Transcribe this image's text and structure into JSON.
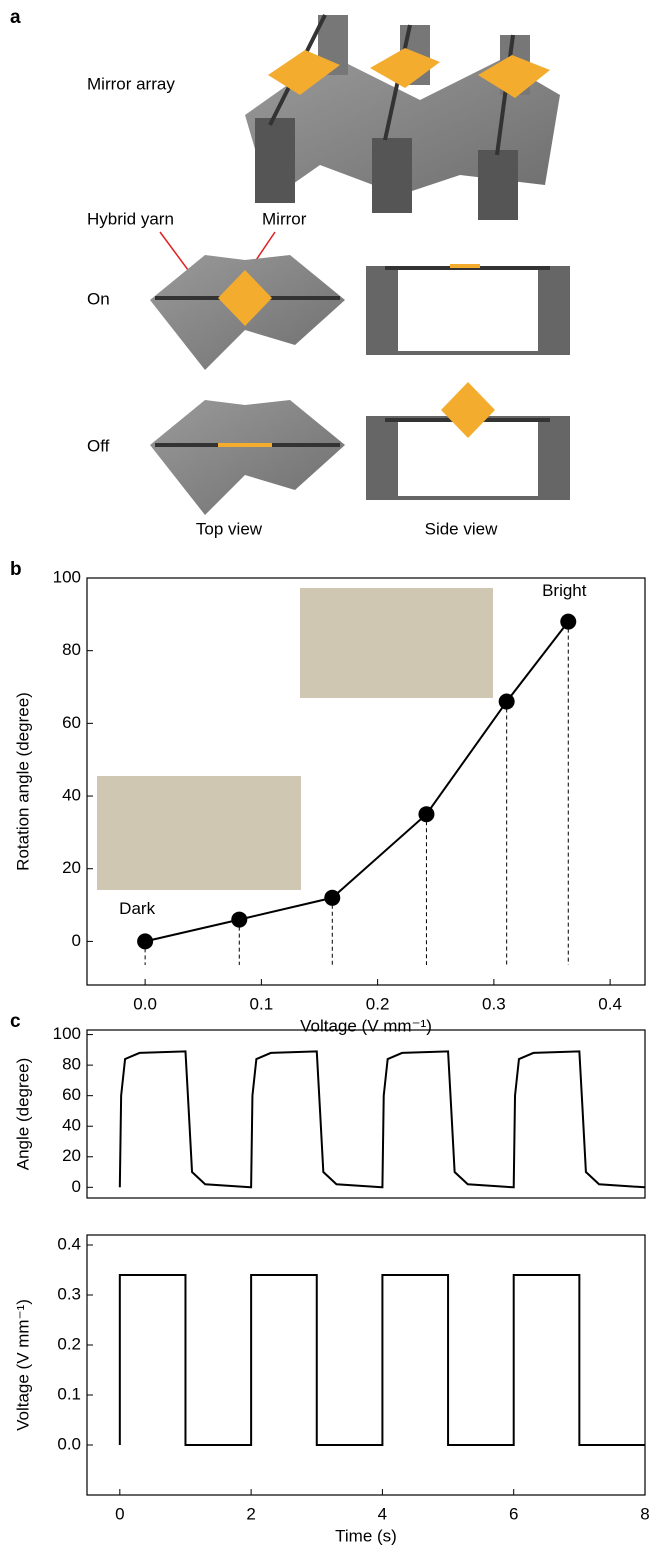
{
  "panel_a": {
    "letter": "a",
    "mirror_array": "Mirror array",
    "hybrid_yarn": "Hybrid yarn",
    "mirror": "Mirror",
    "on": "On",
    "off": "Off",
    "top_view": "Top view",
    "side_view": "Side view"
  },
  "chart_data": [
    {
      "type": "line",
      "letter": "b",
      "xlabel": "Voltage (V mm⁻¹)",
      "ylabel": "Rotation angle (degree)",
      "annotations": [
        "Dark",
        "Bright"
      ],
      "x": [
        0,
        0.081,
        0.161,
        0.242,
        0.311,
        0.364
      ],
      "values": [
        0,
        6,
        12,
        35,
        66,
        88
      ],
      "color": "#000000",
      "markers": true,
      "drop_lines": true,
      "xlim": [
        -0.05,
        0.43
      ],
      "xticks": [
        {
          "value": 0,
          "label": "0.0"
        },
        0.1,
        0.2,
        0.3,
        0.4
      ],
      "ylim": [
        -12,
        100
      ],
      "yticks": [
        0,
        20,
        40,
        60,
        80,
        100
      ]
    },
    {
      "type": "line",
      "letter": "c",
      "ylabel": "Angle (degree)",
      "x": [
        0,
        0.02,
        0.08,
        0.3,
        1,
        1.05,
        1.1,
        1.3,
        1.99,
        2,
        2.02,
        2.08,
        2.3,
        3,
        3.05,
        3.1,
        3.3,
        3.99,
        4,
        4.02,
        4.08,
        4.3,
        5,
        5.05,
        5.1,
        5.3,
        5.99,
        6,
        6.02,
        6.08,
        6.3,
        7,
        7.05,
        7.1,
        7.3,
        8
      ],
      "values": [
        0,
        60,
        84,
        88,
        89,
        50,
        10,
        2,
        0,
        0,
        60,
        84,
        88,
        89,
        50,
        10,
        2,
        0,
        0,
        60,
        84,
        88,
        89,
        50,
        10,
        2,
        0,
        0,
        60,
        84,
        88,
        89,
        50,
        10,
        2,
        0
      ],
      "color": "#000000",
      "xlim": [
        -0.5,
        8
      ],
      "ylim": [
        -7,
        103
      ],
      "yticks": [
        0,
        20,
        40,
        60,
        80,
        100
      ]
    },
    {
      "type": "line",
      "xlabel": "Time (s)",
      "ylabel": "Voltage (V mm⁻¹)",
      "x": [
        0,
        0,
        1,
        1,
        2,
        2,
        3,
        3,
        4,
        4,
        5,
        5,
        6,
        6,
        7,
        7,
        8
      ],
      "values": [
        0,
        0.34,
        0.34,
        0,
        0,
        0.34,
        0.34,
        0,
        0,
        0.34,
        0.34,
        0,
        0,
        0.34,
        0.34,
        0,
        0
      ],
      "color": "#000000",
      "xlim": [
        -0.5,
        8
      ],
      "xticks": [
        0,
        2,
        4,
        6,
        8
      ],
      "ylim": [
        -0.1,
        0.42
      ],
      "yticks": [
        {
          "value": 0,
          "label": "0.0"
        },
        0.1,
        0.2,
        0.3,
        0.4
      ]
    }
  ]
}
